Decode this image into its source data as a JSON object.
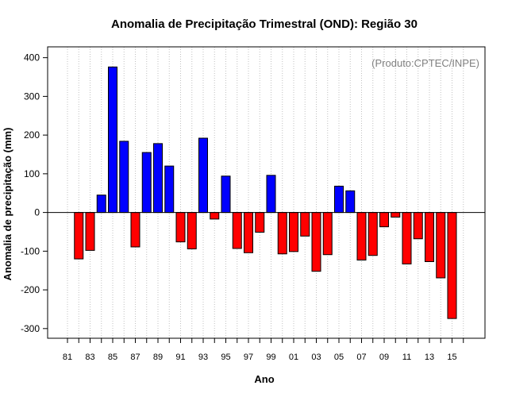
{
  "chart_data": {
    "type": "bar",
    "title": "Anomalia de Precipitação Trimestral (OND): Região 30",
    "xlabel": "Ano",
    "ylabel": "Anomalia de precipitação (mm)",
    "credit": "(Produto:CPTEC/INPE)",
    "ylim": [
      -325,
      428
    ],
    "yticks": [
      -300,
      -200,
      -100,
      0,
      100,
      200,
      300,
      400
    ],
    "grid": "vertical dotted",
    "years": [
      "81",
      "82",
      "83",
      "84",
      "85",
      "86",
      "87",
      "88",
      "89",
      "90",
      "91",
      "92",
      "93",
      "94",
      "95",
      "96",
      "97",
      "98",
      "99",
      "00",
      "01",
      "02",
      "03",
      "04",
      "05",
      "06",
      "07",
      "08",
      "09",
      "10",
      "11",
      "12",
      "13",
      "14",
      "15",
      "16"
    ],
    "x_tick_labels": [
      "81",
      "83",
      "85",
      "87",
      "89",
      "91",
      "93",
      "95",
      "97",
      "99",
      "01",
      "03",
      "05",
      "07",
      "09",
      "11",
      "13",
      "15"
    ],
    "values": [
      null,
      -120,
      -98,
      45,
      376,
      184,
      -89,
      155,
      178,
      120,
      -76,
      -94,
      192,
      -17,
      94,
      -93,
      -104,
      -51,
      96,
      -107,
      -101,
      -61,
      -152,
      -109,
      68,
      56,
      -123,
      -111,
      -37,
      -12,
      -133,
      -68,
      -127,
      -169,
      -274,
      null
    ],
    "colors": {
      "positive": "#0000ff",
      "negative": "#ff0000"
    }
  }
}
